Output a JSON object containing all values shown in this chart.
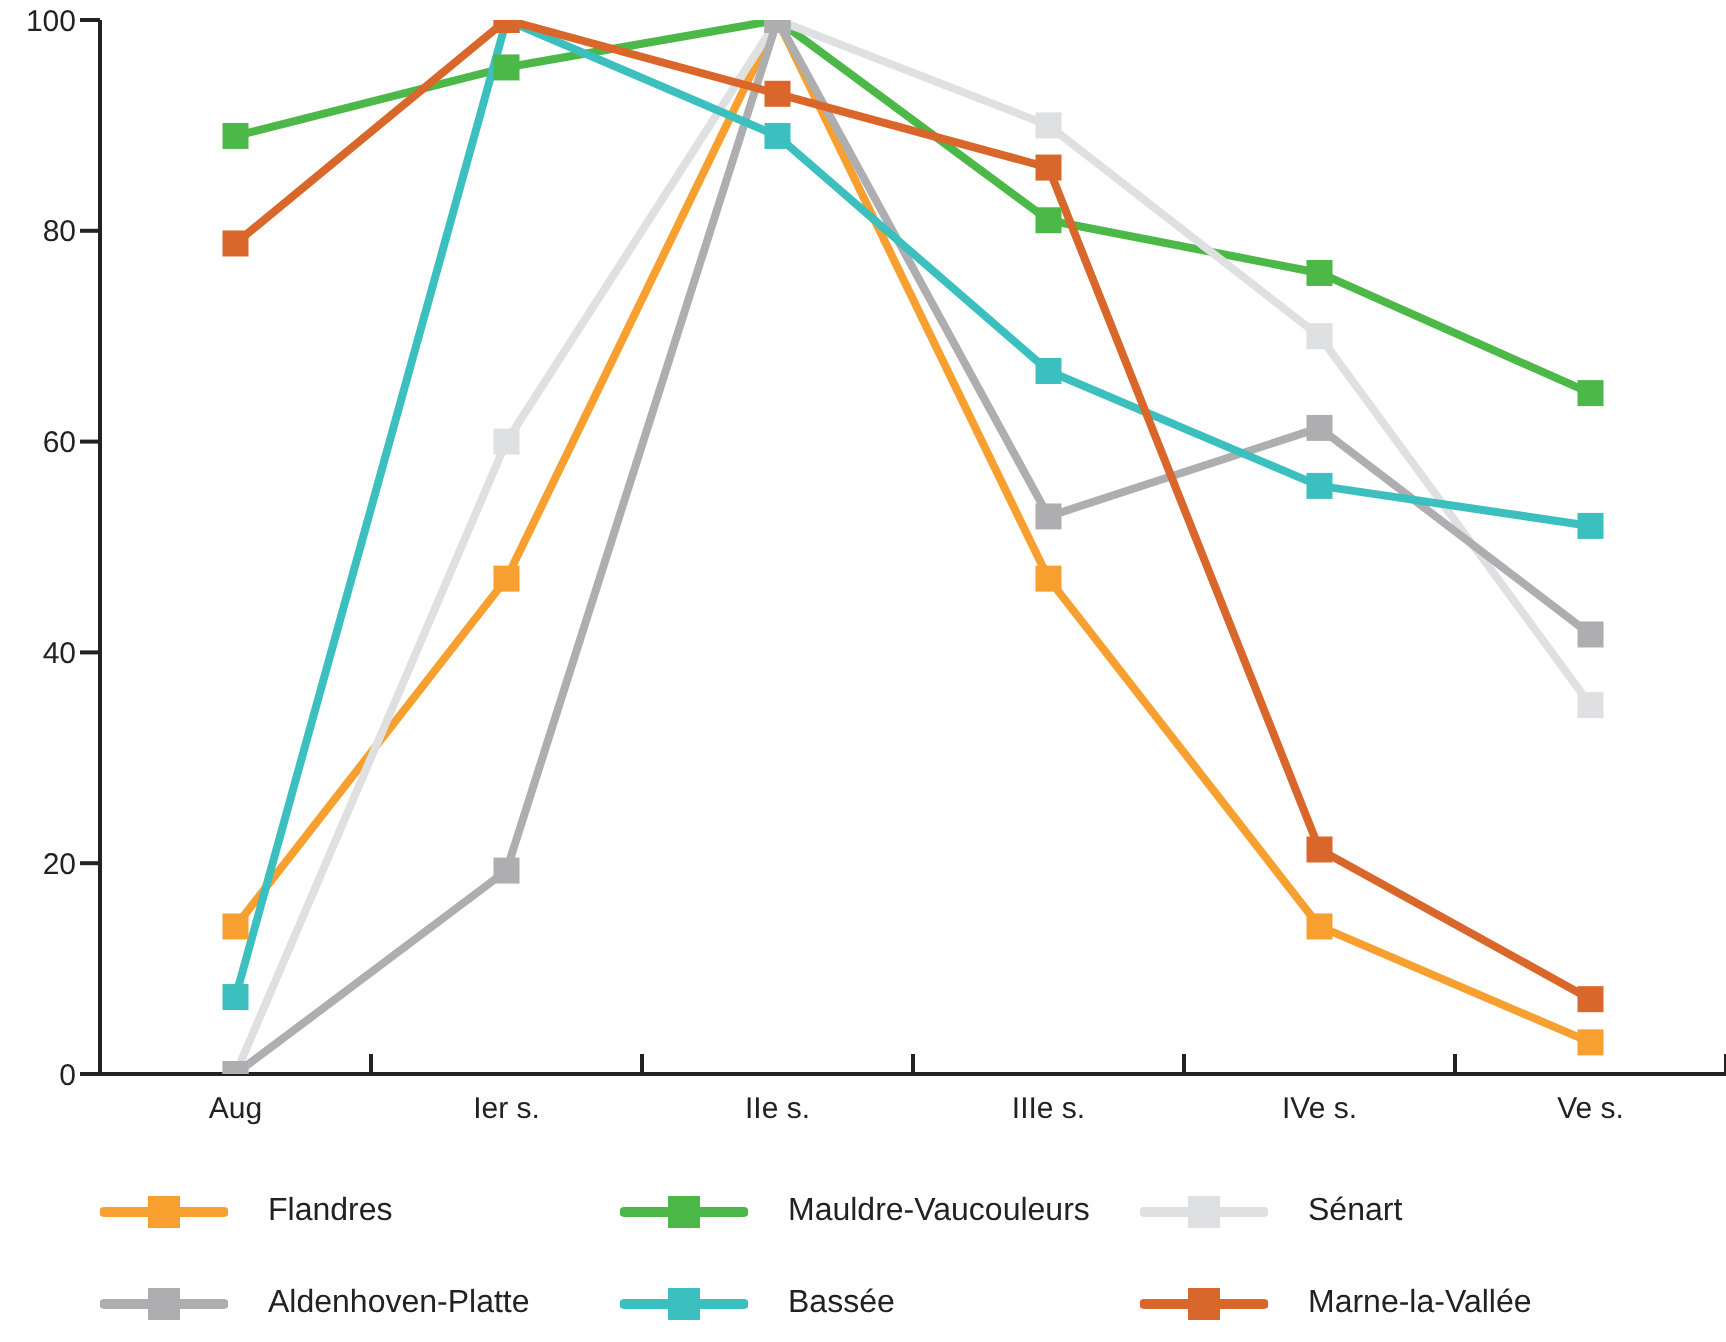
{
  "chart_data": {
    "type": "line",
    "categories": [
      "Aug",
      "Ier s.",
      "IIe s.",
      "IIIe s.",
      "IVe s.",
      "Ve s."
    ],
    "series": [
      {
        "name": "Flandres",
        "color": "#f7a030",
        "values": [
          14,
          47,
          100,
          47,
          14,
          3
        ]
      },
      {
        "name": "Mauldre-Vaucouleurs",
        "color": "#4cb848",
        "values": [
          89,
          95.5,
          100,
          81,
          76,
          64.6
        ]
      },
      {
        "name": "Sénart",
        "color": "#dfe0e2",
        "values": [
          0,
          60,
          100,
          90,
          70,
          35
        ]
      },
      {
        "name": "Aldenhoven-Platte",
        "color": "#aeaeb1",
        "values": [
          0,
          19.3,
          100,
          52.9,
          61.3,
          41.7
        ]
      },
      {
        "name": "Bassée",
        "color": "#3cbfbf",
        "values": [
          7.3,
          100,
          89,
          66.7,
          55.8,
          52
        ]
      },
      {
        "name": "Marne-la-Vallée",
        "color": "#d9662a",
        "values": [
          78.8,
          100,
          93,
          86,
          21.3,
          7.1
        ]
      }
    ],
    "ylim": [
      0,
      100
    ],
    "yticks": [
      0,
      20,
      40,
      60,
      80,
      100
    ],
    "grid": false,
    "legend": "bottom",
    "marker": "square",
    "line_style": "solid"
  }
}
